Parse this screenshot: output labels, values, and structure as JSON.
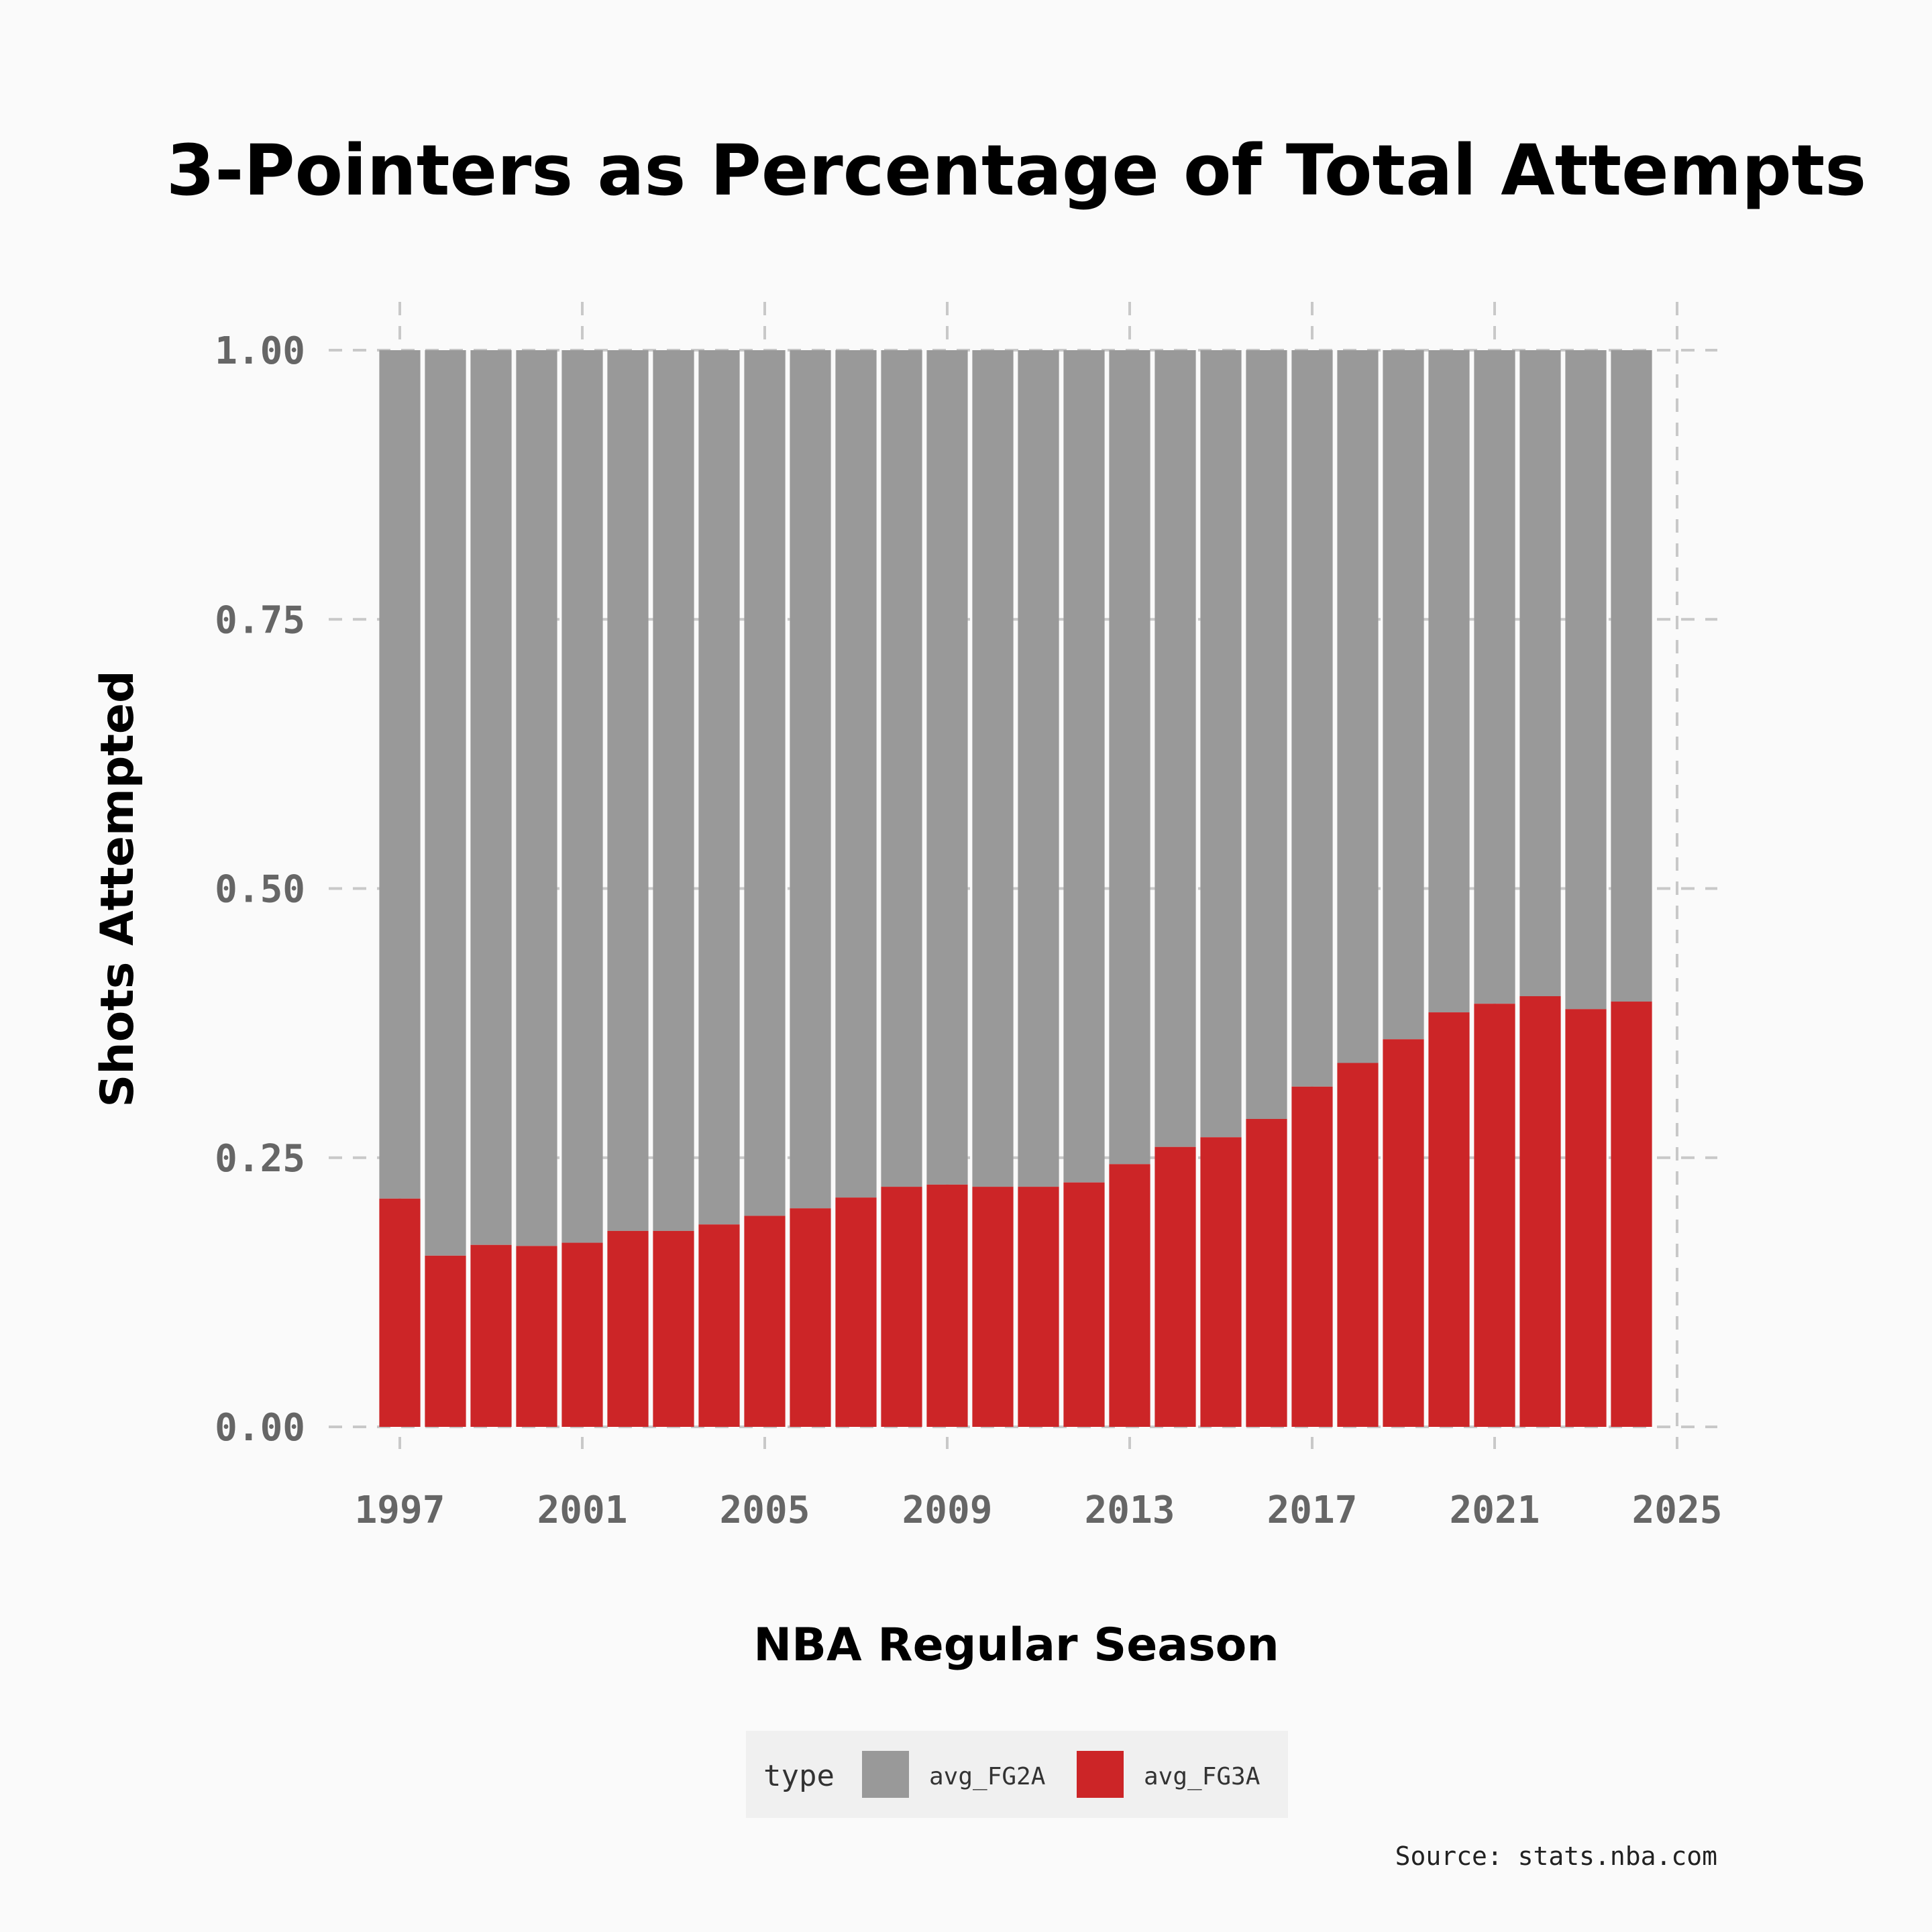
{
  "chart_data": {
    "type": "bar",
    "stacked": true,
    "title": "3-Pointers as Percentage of Total Attempts",
    "xlabel": "NBA Regular Season",
    "ylabel": "Shots Attempted",
    "ylim": [
      0,
      1
    ],
    "xlim": [
      1997,
      2025
    ],
    "x_ticks": [
      "1997",
      "2001",
      "2005",
      "2009",
      "2013",
      "2017",
      "2021",
      "2025"
    ],
    "y_ticks": [
      "0.00",
      "0.25",
      "0.50",
      "0.75",
      "1.00"
    ],
    "grid": true,
    "legend": {
      "title": "type",
      "placement": "bottom",
      "entries": [
        {
          "name": "avg_FG2A",
          "color": "#999999"
        },
        {
          "name": "avg_FG3A",
          "color": "#cc2527"
        }
      ]
    },
    "x": [
      1997,
      1998,
      1999,
      2000,
      2001,
      2002,
      2003,
      2004,
      2005,
      2006,
      2007,
      2008,
      2009,
      2010,
      2011,
      2012,
      2013,
      2014,
      2015,
      2016,
      2017,
      2018,
      2019,
      2020,
      2021,
      2022,
      2023,
      2024
    ],
    "series": [
      {
        "name": "avg_FG3A",
        "color": "#cc2527",
        "values": [
          0.212,
          0.159,
          0.169,
          0.168,
          0.171,
          0.182,
          0.182,
          0.188,
          0.196,
          0.203,
          0.213,
          0.223,
          0.225,
          0.223,
          0.223,
          0.227,
          0.244,
          0.26,
          0.269,
          0.286,
          0.316,
          0.338,
          0.36,
          0.385,
          0.393,
          0.4,
          0.388,
          0.395
        ]
      },
      {
        "name": "avg_FG2A",
        "color": "#999999",
        "values": [
          0.788,
          0.841,
          0.831,
          0.832,
          0.829,
          0.818,
          0.818,
          0.812,
          0.804,
          0.797,
          0.787,
          0.777,
          0.775,
          0.777,
          0.777,
          0.773,
          0.756,
          0.74,
          0.731,
          0.714,
          0.684,
          0.662,
          0.64,
          0.615,
          0.607,
          0.6,
          0.612,
          0.605
        ]
      }
    ],
    "source": "Source: stats.nba.com"
  }
}
